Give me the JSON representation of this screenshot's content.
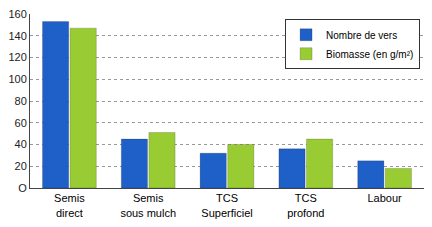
{
  "chart_data": {
    "type": "bar",
    "categories": [
      "Semis direct",
      "Semis sous mulch",
      "TCS Superficiel",
      "TCS profond",
      "Labour"
    ],
    "series": [
      {
        "name": "Nombre de vers",
        "color": "#1f5fc8",
        "values": [
          153,
          45,
          32,
          36,
          25
        ]
      },
      {
        "name": "Biomasse (en g/m²)",
        "color": "#99cc33",
        "values": [
          147,
          51,
          40,
          45,
          18
        ]
      }
    ],
    "ylim": [
      0,
      160
    ],
    "yticks": [
      {
        "value": 0,
        "label": "O"
      },
      20,
      40,
      60,
      80,
      100,
      120,
      140,
      160
    ],
    "grid": true,
    "legend": "top right"
  }
}
